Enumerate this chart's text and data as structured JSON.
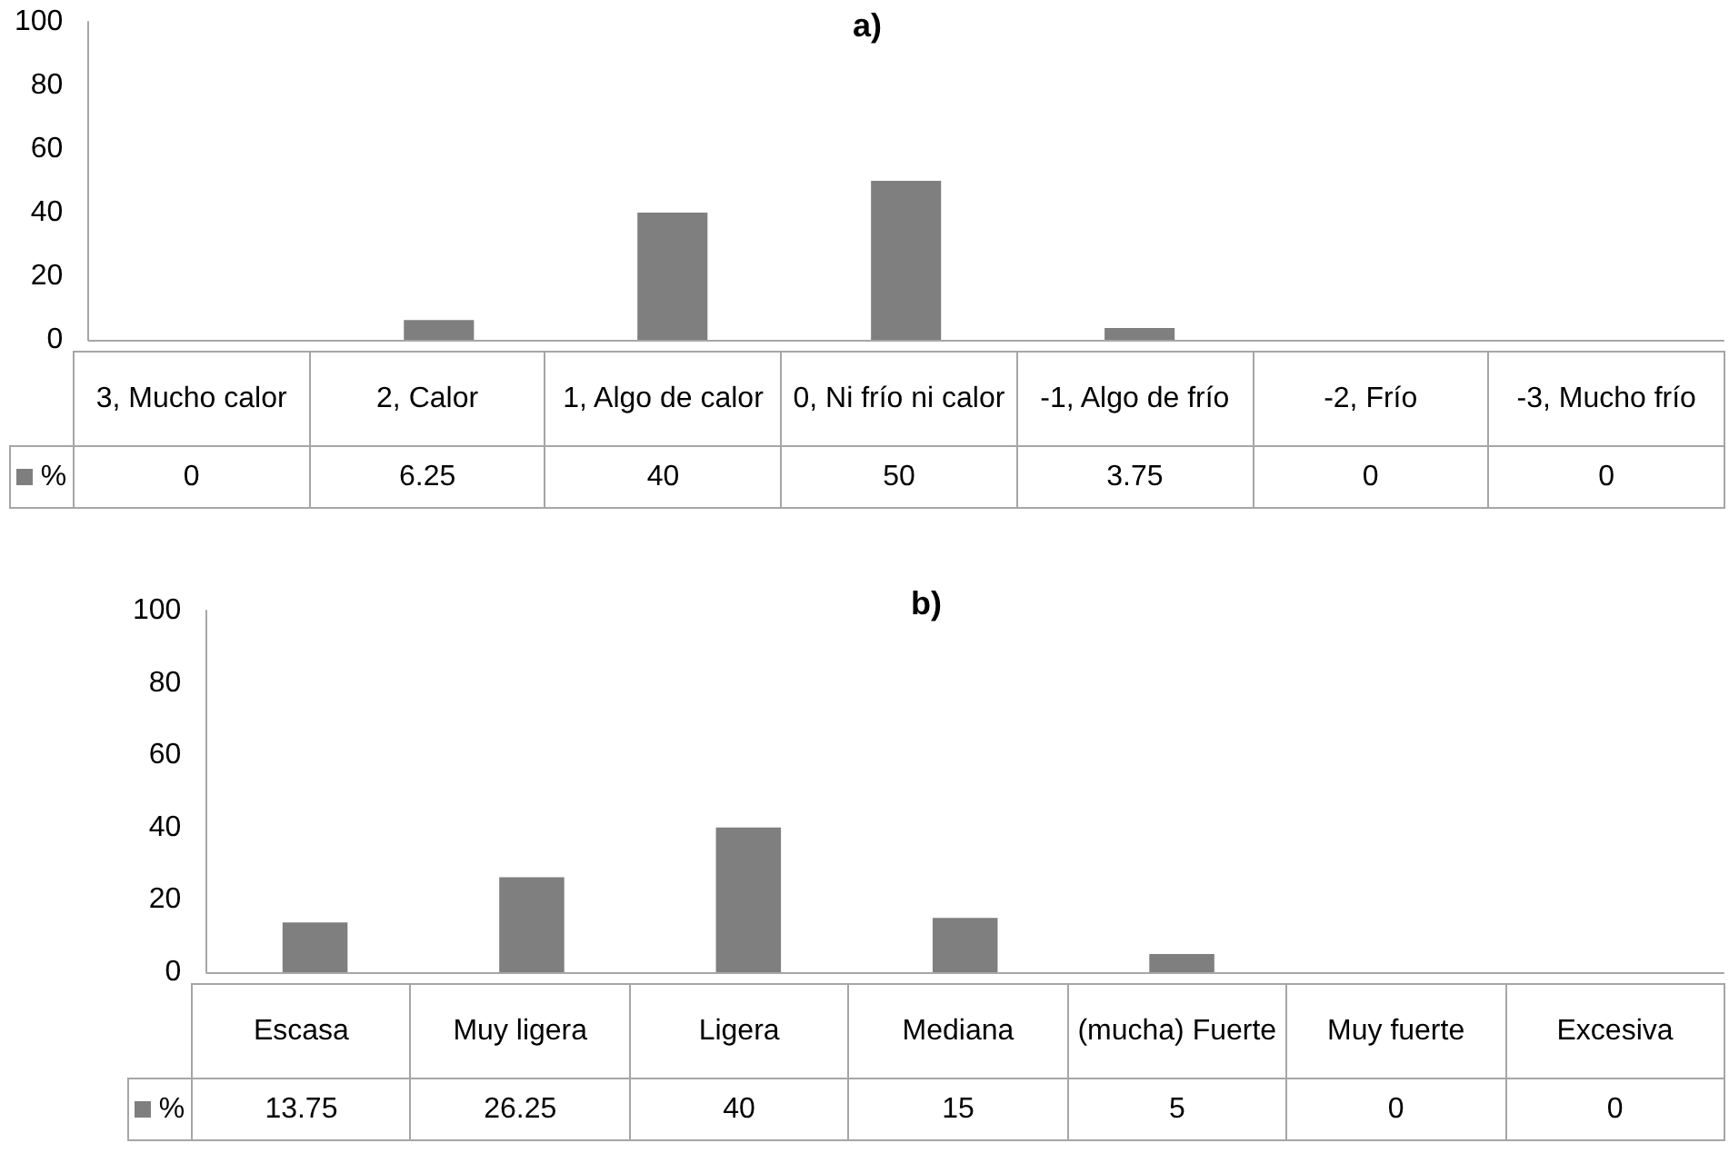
{
  "chart_data": [
    {
      "type": "bar",
      "title": "a)",
      "categories": [
        "3, Mucho calor",
        "2, Calor",
        "1, Algo de calor",
        "0, Ni frío ni calor",
        "-1, Algo de frío",
        "-2, Frío",
        "-3, Mucho frío"
      ],
      "series": [
        {
          "name": "%",
          "color": "#7f7f7f",
          "values": [
            0,
            6.25,
            40,
            50,
            3.75,
            0,
            0
          ]
        }
      ],
      "ylim": [
        0,
        100
      ],
      "yticks": [
        0,
        20,
        40,
        60,
        80,
        100
      ],
      "grid": false,
      "data_labels": true
    },
    {
      "type": "bar",
      "title": "b)",
      "categories": [
        "Escasa",
        "Muy ligera",
        "Ligera",
        "Mediana",
        "(mucha) Fuerte",
        "Muy fuerte",
        "Excesiva"
      ],
      "series": [
        {
          "name": "%",
          "color": "#7f7f7f",
          "values": [
            13.75,
            26.25,
            40,
            15,
            5,
            0,
            0
          ]
        }
      ],
      "ylim": [
        0,
        100
      ],
      "yticks": [
        0,
        20,
        40,
        60,
        80,
        100
      ],
      "grid": false,
      "data_labels": true
    }
  ]
}
